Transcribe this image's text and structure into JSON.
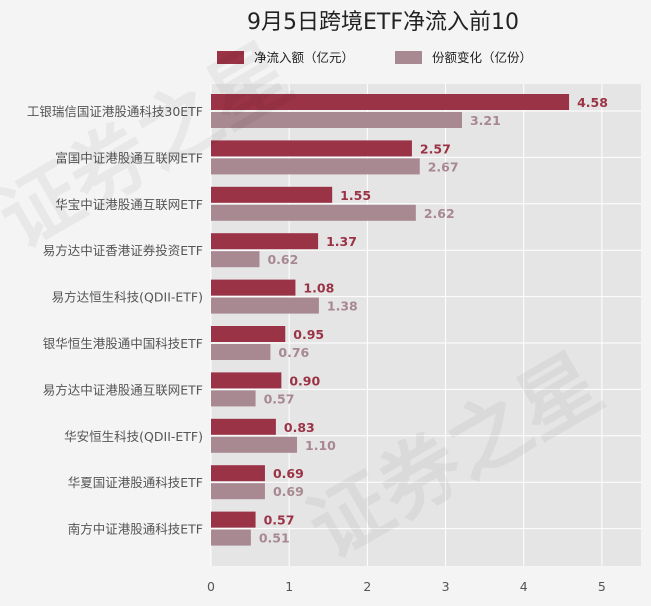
{
  "chart_data": {
    "type": "bar",
    "orientation": "horizontal",
    "title": "9月5日跨境ETF净流入前10",
    "categories": [
      "工银瑞信国证港股通科技30ETF",
      "富国中证港股通互联网ETF",
      "华宝中证港股通互联网ETF",
      "易方达中证香港证券投资ETF",
      "易方达恒生科技(QDII-ETF)",
      "银华恒生港股通中国科技ETF",
      "易方达中证港股通互联网ETF",
      "华安恒生科技(QDII-ETF)",
      "华夏国证港股通科技ETF",
      "南方中证港股通科技ETF"
    ],
    "series": [
      {
        "name": "净流入额（亿元）",
        "values": [
          4.58,
          2.57,
          1.55,
          1.37,
          1.08,
          0.95,
          0.9,
          0.83,
          0.69,
          0.57
        ],
        "labels": [
          "4.58",
          "2.57",
          "1.55",
          "1.37",
          "1.08",
          "0.95",
          "0.90",
          "0.83",
          "0.69",
          "0.57"
        ],
        "color": "#9b3346"
      },
      {
        "name": "份额变化（亿份）",
        "values": [
          3.21,
          2.67,
          2.62,
          0.62,
          1.38,
          0.76,
          0.57,
          1.1,
          0.69,
          0.51
        ],
        "labels": [
          "3.21",
          "2.67",
          "2.62",
          "0.62",
          "1.38",
          "0.76",
          "0.57",
          "1.10",
          "0.69",
          "0.51"
        ],
        "color": "#a88891"
      }
    ],
    "x_ticks": [
      "0",
      "1",
      "2",
      "3",
      "4",
      "5"
    ],
    "xlim": [
      0,
      5.5
    ],
    "grid": true,
    "legend_position": "top",
    "background": "#e5e5e5"
  },
  "watermark": "证券之星"
}
